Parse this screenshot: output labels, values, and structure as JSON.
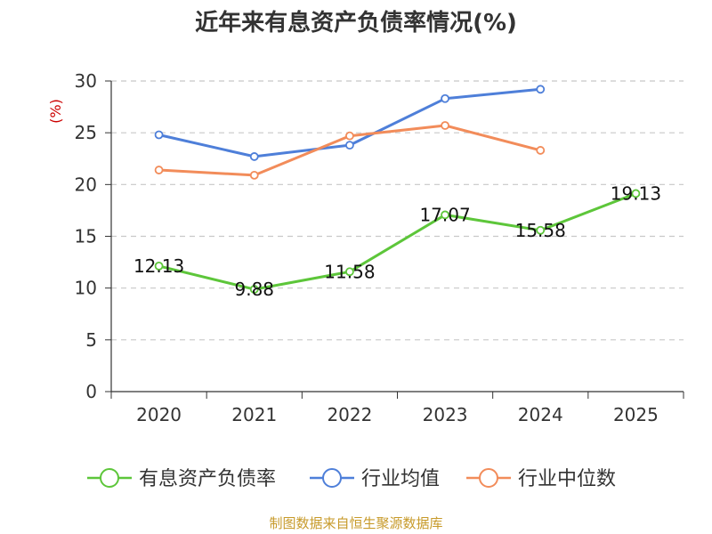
{
  "chart_data": {
    "type": "line",
    "title": "近年来有息资产负债率情况(%)",
    "ylabel": "(%)",
    "xlabel": "",
    "categories": [
      "2020",
      "2021",
      "2022",
      "2023",
      "2024",
      "2025"
    ],
    "ylim": [
      0,
      30
    ],
    "yticks": [
      0,
      5,
      10,
      15,
      20,
      25,
      30
    ],
    "grid": true,
    "legend_position": "bottom",
    "series": [
      {
        "name": "有息资产负债率",
        "color": "#5dc63a",
        "values": [
          12.13,
          9.88,
          11.58,
          17.07,
          15.58,
          19.13
        ],
        "labels": [
          "12.13",
          "9.88",
          "11.58",
          "17.07",
          "15.58",
          "19.13"
        ]
      },
      {
        "name": "行业均值",
        "color": "#4e7fd9",
        "values": [
          24.8,
          22.7,
          23.8,
          28.3,
          29.2,
          null
        ]
      },
      {
        "name": "行业中位数",
        "color": "#f28c5a",
        "values": [
          21.4,
          20.9,
          24.7,
          25.7,
          23.3,
          null
        ]
      }
    ]
  },
  "source_text": "制图数据来自恒生聚源数据库"
}
